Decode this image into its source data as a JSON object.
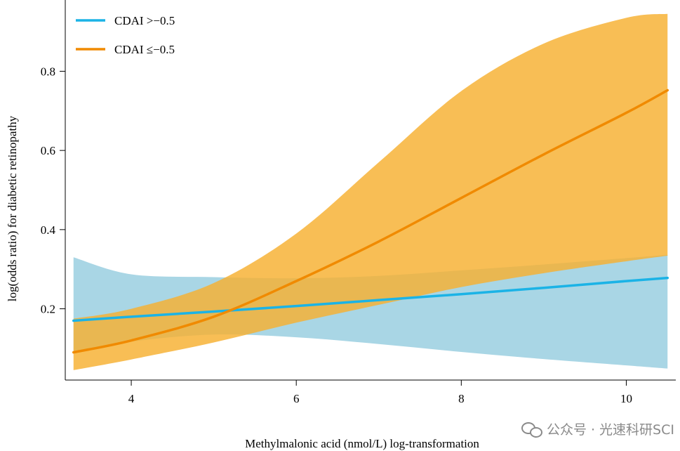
{
  "chart_data": {
    "type": "line",
    "xlabel": "Methylmalonic acid (nmol/L)   log-transformation",
    "ylabel": "log(odds ratio) for diabetic retinopathy",
    "xlim": [
      3.2,
      10.6
    ],
    "ylim": [
      0.02,
      0.98
    ],
    "x_ticks": [
      4,
      6,
      8,
      10
    ],
    "y_ticks": [
      0.2,
      0.4,
      0.6,
      0.8
    ],
    "x_tick_labels": [
      "4",
      "6",
      "8",
      "10"
    ],
    "y_tick_labels": [
      "0.2",
      "0.4",
      "0.6",
      "0.8"
    ],
    "grid": false,
    "legend_position": "top-left",
    "series": [
      {
        "name": "CDAI >−0.5",
        "color": "#1BB3E6",
        "band_color": "#a9d6e5",
        "x": [
          3.3,
          4.0,
          5.0,
          6.0,
          7.0,
          8.0,
          9.0,
          10.0,
          10.5
        ],
        "y": [
          0.17,
          0.18,
          0.193,
          0.207,
          0.222,
          0.237,
          0.253,
          0.27,
          0.278
        ],
        "lower": [
          0.088,
          0.117,
          0.135,
          0.128,
          0.111,
          0.091,
          0.073,
          0.057,
          0.049
        ],
        "upper": [
          0.33,
          0.287,
          0.28,
          0.277,
          0.283,
          0.297,
          0.312,
          0.328,
          0.336
        ]
      },
      {
        "name": "CDAI ≤−0.5",
        "color": "#F08A00",
        "band_color": "#f7b030",
        "x": [
          3.3,
          4.0,
          5.0,
          6.0,
          7.0,
          8.0,
          9.0,
          10.0,
          10.5
        ],
        "y": [
          0.09,
          0.12,
          0.18,
          0.27,
          0.37,
          0.48,
          0.59,
          0.695,
          0.752
        ],
        "lower": [
          0.045,
          0.072,
          0.115,
          0.165,
          0.21,
          0.255,
          0.29,
          0.32,
          0.334
        ],
        "upper": [
          0.175,
          0.2,
          0.265,
          0.39,
          0.57,
          0.75,
          0.87,
          0.935,
          0.945
        ]
      }
    ]
  },
  "watermark": {
    "icon": "wechat-icon",
    "text": "公众号 · 光速科研SCI"
  }
}
